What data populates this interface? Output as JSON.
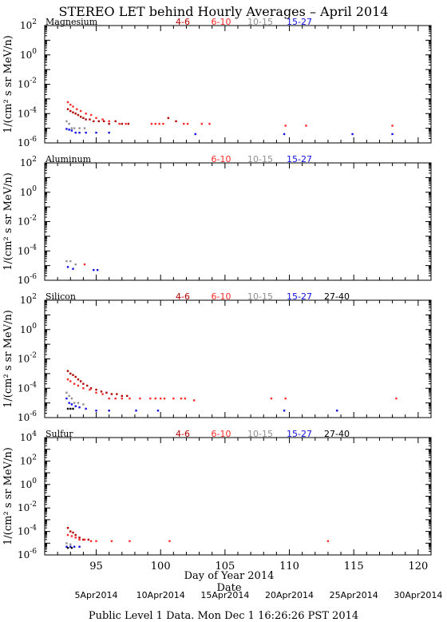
{
  "page": {
    "title": "STEREO LET behind Hourly Averages – April 2014",
    "ylabel": "1/(cm² s sr MeV/n)",
    "xlabel_doy": "Day of Year 2014",
    "xlabel_date": "Date",
    "footer": "Public Level 1 Data. Mon Dec  1 16:26:26 PST 2014"
  },
  "colors": {
    "4-6": "#b00000",
    "6-10": "#ff2a2a",
    "10-15": "#909090",
    "15-27": "#1010e0",
    "27-40": "#000000",
    "axis": "#000000"
  },
  "chart_data": [
    {
      "type": "scatter",
      "title": "Magnesium",
      "ylog": true,
      "ylim_exp": [
        -6,
        2
      ],
      "ytick_exps": [
        -6,
        -4,
        -2,
        0,
        2
      ],
      "xlim": [
        91,
        121
      ],
      "xticks": [
        95,
        100,
        105,
        110,
        115,
        120
      ],
      "legend": [
        "4-6",
        "6-10",
        "10-15",
        "15-27"
      ],
      "series": [
        {
          "name": "4-6",
          "points": [
            [
              92.8,
              0.0002
            ],
            [
              93.0,
              0.00015
            ],
            [
              93.2,
              0.00012
            ],
            [
              93.4,
              0.0001
            ],
            [
              93.6,
              8e-05
            ],
            [
              93.8,
              6e-05
            ],
            [
              94.0,
              5e-05
            ],
            [
              94.2,
              4e-05
            ],
            [
              94.5,
              4e-05
            ],
            [
              94.8,
              3e-05
            ],
            [
              95.2,
              3e-05
            ],
            [
              95.6,
              3e-05
            ],
            [
              96.0,
              2e-05
            ],
            [
              96.5,
              3e-05
            ],
            [
              97.0,
              2e-05
            ],
            [
              97.5,
              2e-05
            ],
            [
              100.6,
              5e-05
            ],
            [
              101.2,
              3e-05
            ]
          ]
        },
        {
          "name": "6-10",
          "points": [
            [
              92.8,
              0.0006
            ],
            [
              93.0,
              0.0004
            ],
            [
              93.2,
              0.0003
            ],
            [
              93.5,
              0.0002
            ],
            [
              93.8,
              0.00015
            ],
            [
              94.2,
              0.0001
            ],
            [
              94.6,
              8e-05
            ],
            [
              95.0,
              5e-05
            ],
            [
              95.5,
              4e-05
            ],
            [
              96.0,
              3e-05
            ],
            [
              96.8,
              2e-05
            ],
            [
              97.3,
              2e-05
            ],
            [
              99.3,
              2e-05
            ],
            [
              99.6,
              2e-05
            ],
            [
              99.9,
              2e-05
            ],
            [
              100.2,
              2e-05
            ],
            [
              101.8,
              2e-05
            ],
            [
              102.1,
              2e-05
            ],
            [
              103.2,
              2e-05
            ],
            [
              103.8,
              2e-05
            ],
            [
              109.7,
              1.5e-05
            ],
            [
              111.3,
              1.5e-05
            ],
            [
              118.0,
              1.5e-05
            ]
          ]
        },
        {
          "name": "10-15",
          "points": [
            [
              92.7,
              3e-05
            ],
            [
              92.9,
              2e-05
            ],
            [
              93.1,
              1e-05
            ],
            [
              93.3,
              1e-05
            ],
            [
              93.7,
              1e-05
            ],
            [
              94.1,
              1e-05
            ]
          ]
        },
        {
          "name": "15-27",
          "points": [
            [
              92.7,
              9e-06
            ],
            [
              92.9,
              8e-06
            ],
            [
              93.1,
              7e-06
            ],
            [
              93.4,
              5e-06
            ],
            [
              93.7,
              5e-06
            ],
            [
              94.2,
              5e-06
            ],
            [
              95.0,
              5e-06
            ],
            [
              96.0,
              5e-06
            ],
            [
              102.7,
              4e-06
            ],
            [
              109.6,
              4e-06
            ],
            [
              114.9,
              4e-06
            ],
            [
              118.0,
              4e-06
            ]
          ]
        }
      ]
    },
    {
      "type": "scatter",
      "title": "Aluminum",
      "ylog": true,
      "ylim_exp": [
        -6,
        2
      ],
      "ytick_exps": [
        -6,
        -4,
        -2,
        0,
        2
      ],
      "xlim": [
        91,
        121
      ],
      "xticks": [
        95,
        100,
        105,
        110,
        115,
        120
      ],
      "legend": [
        "6-10",
        "10-15",
        "15-27"
      ],
      "series": [
        {
          "name": "6-10",
          "points": [
            [
              94.1,
              1.2e-05
            ]
          ]
        },
        {
          "name": "10-15",
          "points": [
            [
              92.7,
              2e-05
            ],
            [
              93.0,
              2e-05
            ],
            [
              93.4,
              1.2e-05
            ]
          ]
        },
        {
          "name": "15-27",
          "points": [
            [
              92.8,
              8e-06
            ],
            [
              93.2,
              6e-06
            ],
            [
              94.8,
              5e-06
            ],
            [
              95.1,
              5e-06
            ]
          ]
        }
      ]
    },
    {
      "type": "scatter",
      "title": "Silicon",
      "ylog": true,
      "ylim_exp": [
        -6,
        2
      ],
      "ytick_exps": [
        -6,
        -4,
        -2,
        0,
        2
      ],
      "xlim": [
        91,
        121
      ],
      "xticks": [
        95,
        100,
        105,
        110,
        115,
        120
      ],
      "legend": [
        "4-6",
        "6-10",
        "10-15",
        "15-27",
        "27-40"
      ],
      "series": [
        {
          "name": "4-6",
          "points": [
            [
              92.8,
              0.0015
            ],
            [
              93.0,
              0.001
            ],
            [
              93.2,
              0.0008
            ],
            [
              93.4,
              0.0006
            ],
            [
              93.6,
              0.0004
            ],
            [
              93.8,
              0.0003
            ],
            [
              94.0,
              0.0002
            ],
            [
              94.3,
              0.00015
            ],
            [
              94.6,
              0.0001
            ],
            [
              95.0,
              8e-05
            ],
            [
              95.4,
              6e-05
            ],
            [
              95.8,
              5e-05
            ],
            [
              96.2,
              4e-05
            ],
            [
              96.6,
              4e-05
            ],
            [
              97.0,
              3e-05
            ],
            [
              97.4,
              3e-05
            ]
          ]
        },
        {
          "name": "6-10",
          "points": [
            [
              92.8,
              0.0004
            ],
            [
              93.0,
              0.0003
            ],
            [
              93.3,
              0.0002
            ],
            [
              93.6,
              0.00015
            ],
            [
              94.0,
              0.0001
            ],
            [
              94.5,
              8e-05
            ],
            [
              95.0,
              5e-05
            ],
            [
              95.5,
              4e-05
            ],
            [
              96.0,
              2e-05
            ],
            [
              96.5,
              2e-05
            ],
            [
              97.0,
              2e-05
            ],
            [
              97.6,
              2e-05
            ],
            [
              98.4,
              2e-05
            ],
            [
              99.2,
              2e-05
            ],
            [
              99.6,
              2e-05
            ],
            [
              100.0,
              2e-05
            ],
            [
              100.3,
              2e-05
            ],
            [
              101.0,
              2e-05
            ],
            [
              101.6,
              2e-05
            ],
            [
              101.9,
              2e-05
            ],
            [
              102.6,
              1.5e-05
            ],
            [
              108.6,
              2e-05
            ],
            [
              109.7,
              2e-05
            ],
            [
              118.3,
              2e-05
            ]
          ]
        },
        {
          "name": "10-15",
          "points": [
            [
              92.7,
              5e-05
            ],
            [
              92.9,
              3e-05
            ],
            [
              93.1,
              2e-05
            ],
            [
              93.3,
              1e-05
            ],
            [
              93.6,
              1e-05
            ],
            [
              94.0,
              8e-06
            ]
          ]
        },
        {
          "name": "15-27",
          "points": [
            [
              92.7,
              2e-05
            ],
            [
              92.9,
              1e-05
            ],
            [
              93.1,
              8e-06
            ],
            [
              93.4,
              6e-06
            ],
            [
              93.7,
              5e-06
            ],
            [
              94.2,
              4e-06
            ],
            [
              95.0,
              3e-06
            ],
            [
              96.0,
              3e-06
            ],
            [
              98.1,
              3e-06
            ],
            [
              99.8,
              3e-06
            ],
            [
              109.6,
              3e-06
            ],
            [
              113.7,
              3e-06
            ]
          ]
        },
        {
          "name": "27-40",
          "points": [
            [
              92.8,
              4e-06
            ],
            [
              93.0,
              4e-06
            ],
            [
              93.2,
              4e-06
            ]
          ]
        }
      ]
    },
    {
      "type": "scatter",
      "title": "Sulfur",
      "ylog": true,
      "ylim_exp": [
        -6,
        4
      ],
      "ytick_exps": [
        -6,
        -4,
        -2,
        0,
        2,
        4
      ],
      "xlim": [
        91,
        121
      ],
      "xticks": [
        95,
        100,
        105,
        110,
        115,
        120
      ],
      "legend": [
        "4-6",
        "6-10",
        "10-15",
        "15-27",
        "27-40"
      ],
      "series": [
        {
          "name": "4-6",
          "points": [
            [
              92.8,
              0.0002
            ],
            [
              93.0,
              0.0001
            ],
            [
              93.2,
              8e-05
            ],
            [
              93.4,
              5e-05
            ],
            [
              93.7,
              3e-05
            ],
            [
              94.0,
              2e-05
            ],
            [
              94.4,
              2e-05
            ]
          ]
        },
        {
          "name": "6-10",
          "points": [
            [
              92.8,
              5e-05
            ],
            [
              93.1,
              4e-05
            ],
            [
              93.4,
              3e-05
            ],
            [
              93.7,
              2e-05
            ],
            [
              94.1,
              2e-05
            ],
            [
              94.6,
              1.5e-05
            ],
            [
              95.0,
              1.5e-05
            ],
            [
              96.2,
              1.5e-05
            ],
            [
              97.6,
              1.5e-05
            ],
            [
              100.7,
              1.5e-05
            ],
            [
              113.0,
              1.5e-05
            ]
          ]
        },
        {
          "name": "10-15",
          "points": [
            [
              92.7,
              1e-05
            ],
            [
              93.0,
              8e-06
            ]
          ]
        },
        {
          "name": "15-27",
          "points": [
            [
              92.7,
              5e-06
            ],
            [
              93.0,
              5e-06
            ],
            [
              93.3,
              5e-06
            ],
            [
              93.7,
              5e-06
            ]
          ]
        },
        {
          "name": "27-40",
          "points": [
            [
              92.8,
              4e-06
            ],
            [
              93.1,
              4e-06
            ]
          ]
        }
      ]
    }
  ],
  "date_axis": [
    {
      "doy": 95,
      "label": "5Apr2014"
    },
    {
      "doy": 100,
      "label": "10Apr2014"
    },
    {
      "doy": 105,
      "label": "15Apr2014"
    },
    {
      "doy": 110,
      "label": "20Apr2014"
    },
    {
      "doy": 115,
      "label": "25Apr2014"
    },
    {
      "doy": 120,
      "label": "30Apr2014"
    }
  ]
}
